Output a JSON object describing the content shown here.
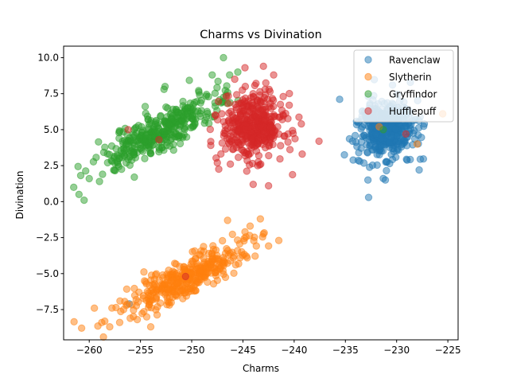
{
  "chart_data": {
    "type": "scatter",
    "title": "Charms vs Divination",
    "xlabel": "Charms",
    "ylabel": "Divination",
    "xlim": [
      -262.5,
      -224
    ],
    "ylim": [
      -9.6,
      10.8
    ],
    "xticks": [
      -260,
      -255,
      -250,
      -245,
      -240,
      -235,
      -230,
      -225
    ],
    "yticks": [
      -7.5,
      -5.0,
      -2.5,
      0.0,
      2.5,
      5.0,
      7.5,
      10.0
    ],
    "xtick_labels": [
      "−260",
      "−255",
      "−250",
      "−245",
      "−240",
      "−235",
      "−230",
      "−225"
    ],
    "ytick_labels": [
      "−7.5",
      "−5.0",
      "−2.5",
      "0.0",
      "2.5",
      "5.0",
      "7.5",
      "10.0"
    ],
    "grid": false,
    "legend_position": "top-right",
    "marker_alpha": 0.5,
    "series": [
      {
        "name": "Ravenclaw",
        "color": "#1f77b4",
        "clusters": [
          {
            "center": [
              -231.0,
              5.0
            ],
            "spread": [
              1.4,
              1.0
            ],
            "count": 420,
            "correlation": 0.0
          }
        ],
        "points": [
          [
            -256.1,
            -7.1
          ],
          [
            -231.1,
            1.5
          ],
          [
            -233.6,
            2.8
          ],
          [
            -227.8,
            2.2
          ],
          [
            -234.3,
            4.2
          ],
          [
            -230.4,
            8.1
          ],
          [
            -232.8,
            1.5
          ],
          [
            -227.3,
            5.4
          ]
        ]
      },
      {
        "name": "Slytherin",
        "color": "#ff7f0e",
        "clusters": [
          {
            "center": [
              -250.3,
              -5.2
            ],
            "spread": [
              3.2,
              1.3
            ],
            "count": 360,
            "correlation": 0.85
          }
        ],
        "points": [
          [
            -259.5,
            -7.4
          ],
          [
            -258.0,
            -8.7
          ],
          [
            -256.0,
            -8.1
          ],
          [
            -254.0,
            -8.7
          ],
          [
            -241.5,
            -2.7
          ],
          [
            -243.3,
            -1.2
          ],
          [
            -246.5,
            -1.3
          ],
          [
            -244.3,
            -1.7
          ],
          [
            -257.0,
            -6.9
          ],
          [
            -244.8,
            -2.1
          ],
          [
            -225.5,
            6.1
          ],
          [
            -228.0,
            4.0
          ],
          [
            -231.7,
            5.2
          ]
        ]
      },
      {
        "name": "Gryffindor",
        "color": "#2ca02c",
        "clusters": [
          {
            "center": [
              -253.3,
              4.8
            ],
            "spread": [
              3.0,
              1.3
            ],
            "count": 380,
            "correlation": 0.85
          }
        ],
        "points": [
          [
            -261.0,
            0.5
          ],
          [
            -260.5,
            0.1
          ],
          [
            -260.0,
            1.6
          ],
          [
            -259.0,
            1.4
          ],
          [
            -258.7,
            1.9
          ],
          [
            -246.9,
            10.0
          ],
          [
            -248.0,
            8.8
          ],
          [
            -246.3,
            8.8
          ],
          [
            -245.5,
            9.0
          ],
          [
            -252.7,
            7.8
          ],
          [
            -252.6,
            8.0
          ],
          [
            -247.8,
            5.9
          ],
          [
            -255.6,
            1.7
          ],
          [
            -231.3,
            5.0
          ]
        ]
      },
      {
        "name": "Hufflepuff",
        "color": "#d62728",
        "clusters": [
          {
            "center": [
              -244.0,
              5.2
            ],
            "spread": [
              1.5,
              1.1
            ],
            "count": 420,
            "correlation": 0.0
          }
        ],
        "points": [
          [
            -244.8,
            9.3
          ],
          [
            -243.0,
            9.4
          ],
          [
            -242.0,
            8.8
          ],
          [
            -239.3,
            5.4
          ],
          [
            -244.0,
            1.2
          ],
          [
            -242.5,
            1.1
          ],
          [
            -247.5,
            2.7
          ],
          [
            -256.2,
            5.0
          ],
          [
            -253.2,
            4.3
          ],
          [
            -250.6,
            -5.2
          ],
          [
            -229.1,
            4.7
          ],
          [
            -245.8,
            8.5
          ]
        ]
      }
    ]
  }
}
